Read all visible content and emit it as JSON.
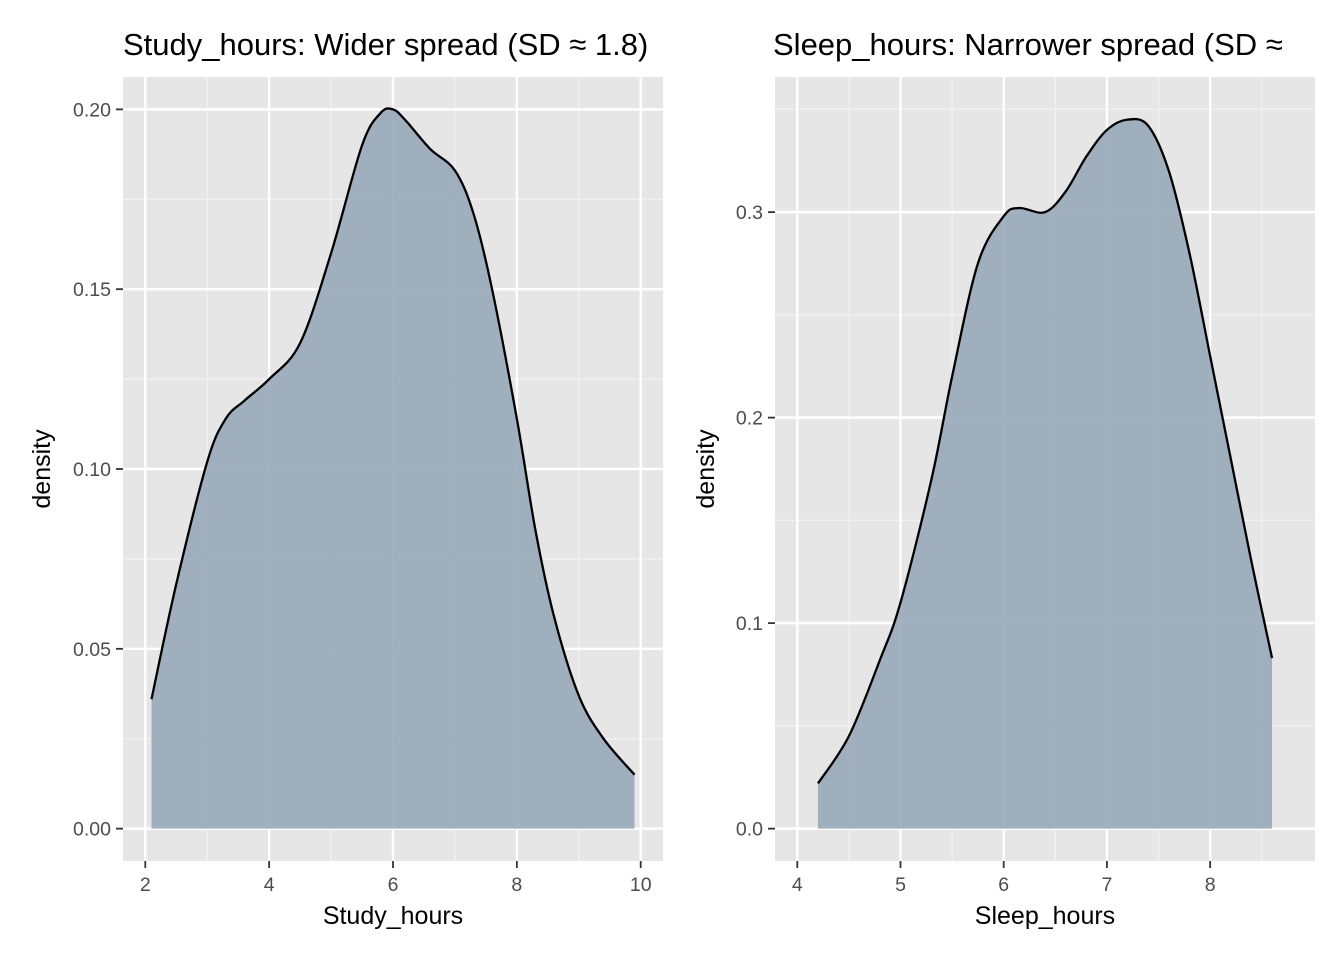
{
  "chart_data": [
    {
      "type": "area",
      "title": "Study_hours: Wider spread (SD ≈ 1.8)",
      "xlabel": "Study_hours",
      "ylabel": "density",
      "xlim": [
        2,
        10
      ],
      "ylim": [
        0,
        0.2
      ],
      "x_ticks": [
        2,
        4,
        6,
        8,
        10
      ],
      "x_tick_labels": [
        "2",
        "4",
        "6",
        "8",
        "10"
      ],
      "y_ticks": [
        0,
        0.05,
        0.1,
        0.15,
        0.2
      ],
      "y_tick_labels": [
        "0.00",
        "0.05",
        "0.10",
        "0.15",
        "0.20"
      ],
      "grid": true,
      "fill_color": "#9aaabb",
      "line_color": "#000000",
      "panel_background": "#e6e6e6",
      "series": [
        {
          "x": [
            2.1,
            2.5,
            3.0,
            3.3,
            3.6,
            4.0,
            4.5,
            5.0,
            5.5,
            5.8,
            6.0,
            6.2,
            6.6,
            7.0,
            7.3,
            7.6,
            8.0,
            8.3,
            8.6,
            9.0,
            9.4,
            9.9
          ],
          "y": [
            0.036,
            0.068,
            0.102,
            0.114,
            0.119,
            0.125,
            0.135,
            0.16,
            0.19,
            0.199,
            0.2,
            0.197,
            0.189,
            0.183,
            0.171,
            0.15,
            0.114,
            0.083,
            0.059,
            0.037,
            0.025,
            0.015
          ]
        }
      ]
    },
    {
      "type": "area",
      "title": "Sleep_hours: Narrower spread (SD ≈",
      "xlabel": "Sleep_hours",
      "ylabel": "density",
      "xlim": [
        4,
        8.8
      ],
      "ylim": [
        0,
        0.35
      ],
      "x_ticks": [
        4,
        5,
        6,
        7,
        8
      ],
      "x_tick_labels": [
        "4",
        "5",
        "6",
        "7",
        "8"
      ],
      "y_ticks": [
        0,
        0.1,
        0.2,
        0.3
      ],
      "y_tick_labels": [
        "0.0",
        "0.1",
        "0.2",
        "0.3"
      ],
      "grid": true,
      "fill_color": "#9aaabb",
      "line_color": "#000000",
      "panel_background": "#e6e6e6",
      "series": [
        {
          "x": [
            4.2,
            4.5,
            4.8,
            5.0,
            5.3,
            5.5,
            5.75,
            6.0,
            6.15,
            6.4,
            6.6,
            6.8,
            7.0,
            7.2,
            7.4,
            7.6,
            7.8,
            8.0,
            8.2,
            8.4,
            8.6
          ],
          "y": [
            0.022,
            0.045,
            0.082,
            0.11,
            0.17,
            0.22,
            0.275,
            0.298,
            0.302,
            0.3,
            0.31,
            0.327,
            0.34,
            0.345,
            0.342,
            0.32,
            0.28,
            0.23,
            0.18,
            0.13,
            0.083
          ]
        }
      ]
    }
  ]
}
